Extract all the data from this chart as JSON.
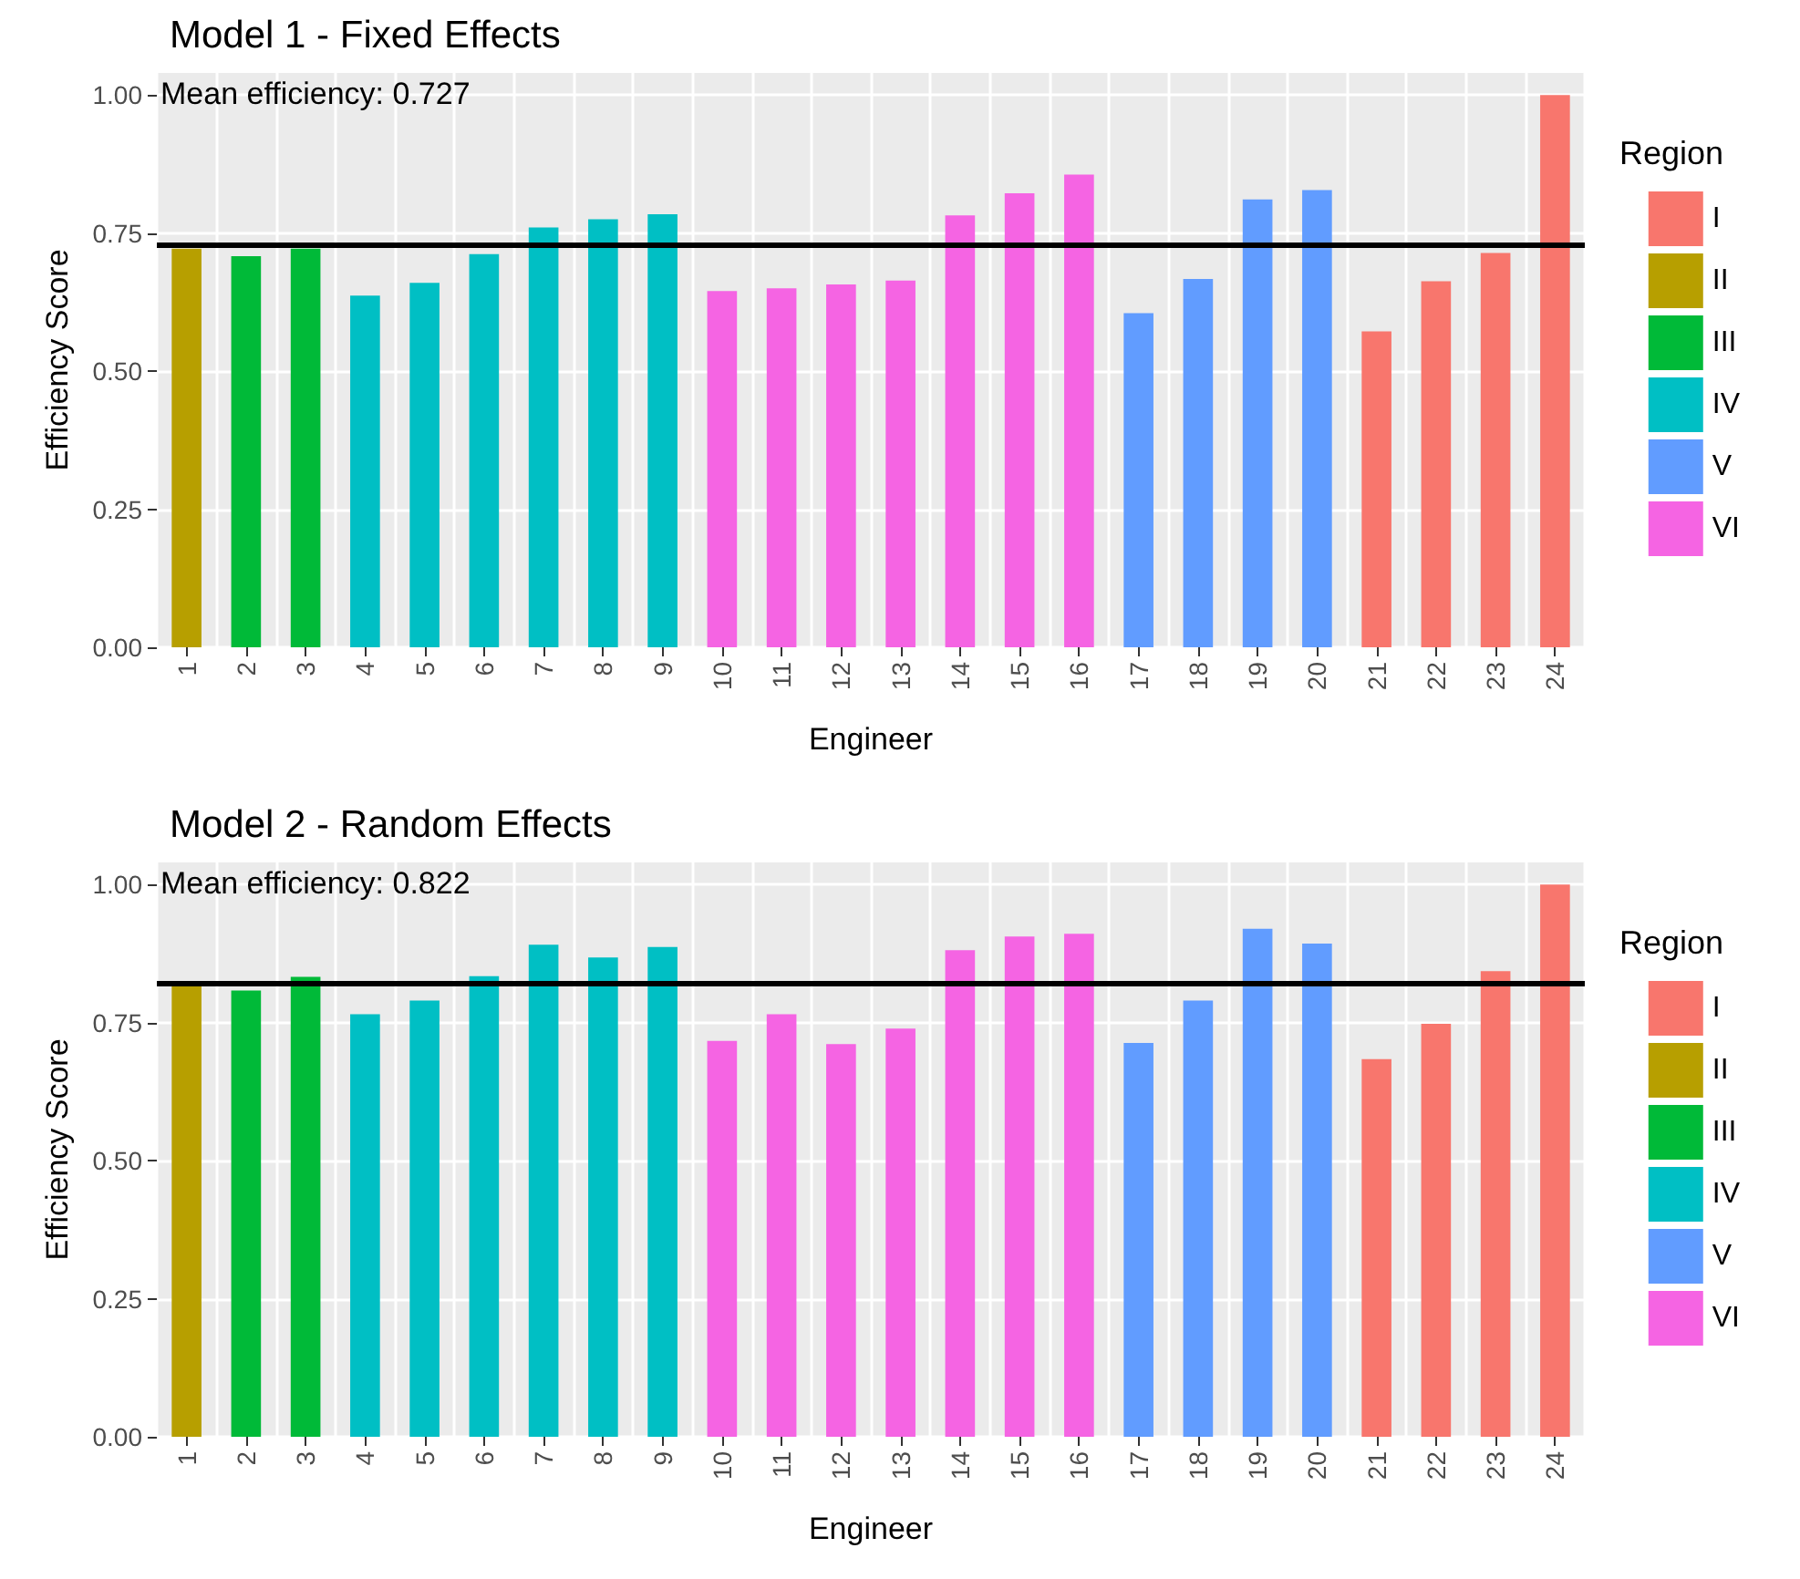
{
  "chart_data": [
    {
      "type": "bar",
      "title": "Model 1 - Fixed Effects",
      "xlabel": "Engineer",
      "ylabel": "Efficiency Score",
      "legend_title": "Region",
      "categories": [
        "1",
        "2",
        "3",
        "4",
        "5",
        "6",
        "7",
        "8",
        "9",
        "10",
        "11",
        "12",
        "13",
        "14",
        "15",
        "16",
        "17",
        "18",
        "19",
        "20",
        "21",
        "22",
        "23",
        "24"
      ],
      "series": [
        {
          "name": "I",
          "color": "#f8766d",
          "values": [
            null,
            null,
            null,
            null,
            null,
            null,
            null,
            null,
            null,
            null,
            null,
            null,
            null,
            null,
            null,
            null,
            null,
            null,
            null,
            null,
            0.572,
            0.663,
            0.714,
            1.0
          ]
        },
        {
          "name": "II",
          "color": "#b79f00",
          "values": [
            0.722,
            null,
            null,
            null,
            null,
            null,
            null,
            null,
            null,
            null,
            null,
            null,
            null,
            null,
            null,
            null,
            null,
            null,
            null,
            null,
            null,
            null,
            null,
            null
          ]
        },
        {
          "name": "III",
          "color": "#00ba38",
          "values": [
            null,
            0.708,
            0.722,
            null,
            null,
            null,
            null,
            null,
            null,
            null,
            null,
            null,
            null,
            null,
            null,
            null,
            null,
            null,
            null,
            null,
            null,
            null,
            null,
            null
          ]
        },
        {
          "name": "IV",
          "color": "#00bfc4",
          "values": [
            null,
            null,
            null,
            0.637,
            0.66,
            0.712,
            0.76,
            0.775,
            0.784,
            null,
            null,
            null,
            null,
            null,
            null,
            null,
            null,
            null,
            null,
            null,
            null,
            null,
            null,
            null
          ]
        },
        {
          "name": "V",
          "color": "#619cff",
          "values": [
            null,
            null,
            null,
            null,
            null,
            null,
            null,
            null,
            null,
            null,
            null,
            null,
            null,
            null,
            null,
            null,
            0.605,
            0.667,
            0.811,
            0.828,
            null,
            null,
            null,
            null
          ]
        },
        {
          "name": "VI",
          "color": "#f564e3",
          "values": [
            null,
            null,
            null,
            null,
            null,
            null,
            null,
            null,
            null,
            0.645,
            0.65,
            0.657,
            0.664,
            0.782,
            0.822,
            0.856,
            null,
            null,
            null,
            null,
            null,
            null,
            null,
            null
          ]
        }
      ],
      "ylim": [
        0,
        1.04
      ],
      "yticks": [
        {
          "value": 0,
          "label": "0.00"
        },
        {
          "value": 0.25,
          "label": "0.25"
        },
        {
          "value": 0.5,
          "label": "0.50"
        },
        {
          "value": 0.75,
          "label": "0.75"
        },
        {
          "value": 1,
          "label": "1.00"
        }
      ],
      "ref_lines": [
        {
          "axis": "y",
          "value": 0.727,
          "color": "#000000"
        }
      ],
      "annotations": [
        "Mean efficiency: 0.727"
      ],
      "grid": true,
      "legend": "right"
    },
    {
      "type": "bar",
      "title": "Model 2 - Random Effects",
      "xlabel": "Engineer",
      "ylabel": "Efficiency Score",
      "legend_title": "Region",
      "categories": [
        "1",
        "2",
        "3",
        "4",
        "5",
        "6",
        "7",
        "8",
        "9",
        "10",
        "11",
        "12",
        "13",
        "14",
        "15",
        "16",
        "17",
        "18",
        "19",
        "20",
        "21",
        "22",
        "23",
        "24"
      ],
      "series": [
        {
          "name": "I",
          "color": "#f8766d",
          "values": [
            null,
            null,
            null,
            null,
            null,
            null,
            null,
            null,
            null,
            null,
            null,
            null,
            null,
            null,
            null,
            null,
            null,
            null,
            null,
            null,
            0.684,
            0.748,
            0.843,
            1.0
          ]
        },
        {
          "name": "II",
          "color": "#b79f00",
          "values": [
            0.82,
            null,
            null,
            null,
            null,
            null,
            null,
            null,
            null,
            null,
            null,
            null,
            null,
            null,
            null,
            null,
            null,
            null,
            null,
            null,
            null,
            null,
            null,
            null
          ]
        },
        {
          "name": "III",
          "color": "#00ba38",
          "values": [
            null,
            0.808,
            0.833,
            null,
            null,
            null,
            null,
            null,
            null,
            null,
            null,
            null,
            null,
            null,
            null,
            null,
            null,
            null,
            null,
            null,
            null,
            null,
            null,
            null
          ]
        },
        {
          "name": "IV",
          "color": "#00bfc4",
          "values": [
            null,
            null,
            null,
            0.765,
            0.79,
            0.834,
            0.891,
            0.868,
            0.887,
            null,
            null,
            null,
            null,
            null,
            null,
            null,
            null,
            null,
            null,
            null,
            null,
            null,
            null,
            null
          ]
        },
        {
          "name": "V",
          "color": "#619cff",
          "values": [
            null,
            null,
            null,
            null,
            null,
            null,
            null,
            null,
            null,
            null,
            null,
            null,
            null,
            null,
            null,
            null,
            0.713,
            0.79,
            0.92,
            0.893,
            null,
            null,
            null,
            null
          ]
        },
        {
          "name": "VI",
          "color": "#f564e3",
          "values": [
            null,
            null,
            null,
            null,
            null,
            null,
            null,
            null,
            null,
            0.717,
            0.765,
            0.711,
            0.739,
            0.881,
            0.906,
            0.911,
            null,
            null,
            null,
            null,
            null,
            null,
            null,
            null
          ]
        }
      ],
      "ylim": [
        0,
        1.04
      ],
      "yticks": [
        {
          "value": 0,
          "label": "0.00"
        },
        {
          "value": 0.25,
          "label": "0.25"
        },
        {
          "value": 0.5,
          "label": "0.50"
        },
        {
          "value": 0.75,
          "label": "0.75"
        },
        {
          "value": 1,
          "label": "1.00"
        }
      ],
      "ref_lines": [
        {
          "axis": "y",
          "value": 0.822,
          "color": "#000000"
        }
      ],
      "annotations": [
        "Mean efficiency: 0.822"
      ],
      "grid": true,
      "legend": "right"
    }
  ]
}
